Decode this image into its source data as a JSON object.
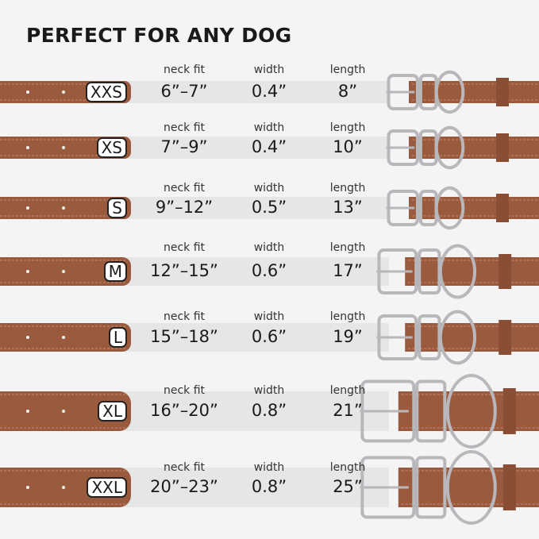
{
  "title": "PERFECT FOR ANY DOG",
  "column_labels": {
    "neck_fit": "neck fit",
    "width": "width",
    "length": "length"
  },
  "colors": {
    "leather": "#9a5a3e",
    "stitch": "#c98a6e",
    "metal": "#b8b8bc",
    "band": "#e6e6e6"
  },
  "sizes": [
    {
      "size": "XXS",
      "neck_fit": "6”–7”",
      "width": "0.4”",
      "length": "8”"
    },
    {
      "size": "XS",
      "neck_fit": "7”–9”",
      "width": "0.4”",
      "length": "10”"
    },
    {
      "size": "S",
      "neck_fit": "9”–12”",
      "width": "0.5”",
      "length": "13”"
    },
    {
      "size": "M",
      "neck_fit": "12”–15”",
      "width": "0.6”",
      "length": "17”"
    },
    {
      "size": "L",
      "neck_fit": "15”–18”",
      "width": "0.6”",
      "length": "19”"
    },
    {
      "size": "XL",
      "neck_fit": "16”–20”",
      "width": "0.8”",
      "length": "21”"
    },
    {
      "size": "XXL",
      "neck_fit": "20”–23”",
      "width": "0.8”",
      "length": "25”"
    }
  ]
}
